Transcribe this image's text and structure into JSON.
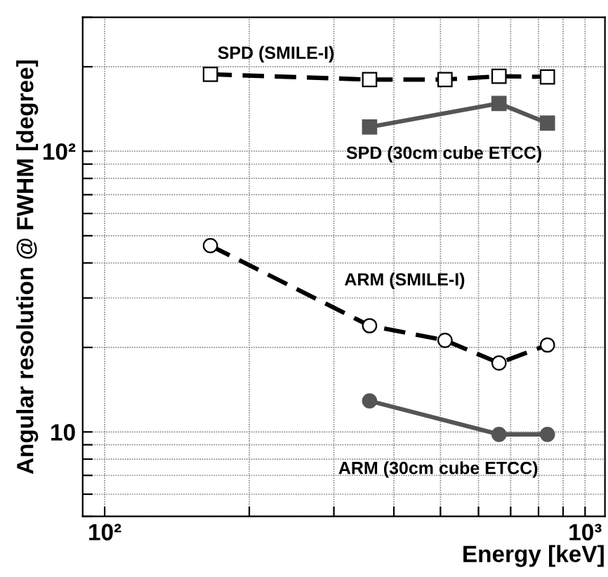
{
  "chart_data": {
    "type": "line",
    "xlabel": "Energy [keV]",
    "ylabel": "Angular resolution @ FWHM [degree]",
    "log": "xy",
    "grid": true,
    "xlim": [
      90,
      1100
    ],
    "ylim": [
      5,
      300
    ],
    "xticks": [
      {
        "value": 100,
        "label": "10²"
      },
      {
        "value": 200,
        "label": null
      },
      {
        "value": 300,
        "label": null
      },
      {
        "value": 400,
        "label": null
      },
      {
        "value": 500,
        "label": null
      },
      {
        "value": 600,
        "label": null
      },
      {
        "value": 700,
        "label": null
      },
      {
        "value": 800,
        "label": null
      },
      {
        "value": 900,
        "label": null
      },
      {
        "value": 1000,
        "label": "10³"
      }
    ],
    "yticks": [
      {
        "value": 5,
        "label": null
      },
      {
        "value": 6,
        "label": null
      },
      {
        "value": 7,
        "label": null
      },
      {
        "value": 8,
        "label": null
      },
      {
        "value": 9,
        "label": null
      },
      10,
      {
        "value": 20,
        "label": null
      },
      {
        "value": 30,
        "label": null
      },
      {
        "value": 40,
        "label": null
      },
      {
        "value": 50,
        "label": null
      },
      {
        "value": 60,
        "label": null
      },
      {
        "value": 70,
        "label": null
      },
      {
        "value": 80,
        "label": null
      },
      {
        "value": 90,
        "label": null
      },
      {
        "value": 100,
        "label": "10²"
      },
      {
        "value": 200,
        "label": null
      },
      {
        "value": 300,
        "label": null
      }
    ],
    "series": [
      {
        "name": "SPD (SMILE-I)",
        "color": "#000000",
        "marker": "square",
        "line_style": "dashed",
        "x": [
          166,
          356,
          511,
          662,
          835
        ],
        "values": [
          188,
          180,
          180,
          185,
          184
        ]
      },
      {
        "name": "SPD (30cm cube ETCC)",
        "color": "#555555",
        "marker": "square",
        "line_style": "solid",
        "x": [
          356,
          662,
          835
        ],
        "values": [
          122,
          148,
          126
        ]
      },
      {
        "name": "ARM (SMILE-I)",
        "color": "#000000",
        "marker": "circle",
        "line_style": "dashed",
        "x": [
          166,
          356,
          511,
          662,
          835
        ],
        "values": [
          46.1,
          23.9,
          21.2,
          17.6,
          20.4
        ]
      },
      {
        "name": "ARM (30cm cube ETCC)",
        "color": "#555555",
        "marker": "circle",
        "line_style": "solid",
        "x": [
          356,
          662,
          835
        ],
        "values": [
          12.9,
          9.8,
          9.8
        ]
      }
    ]
  }
}
